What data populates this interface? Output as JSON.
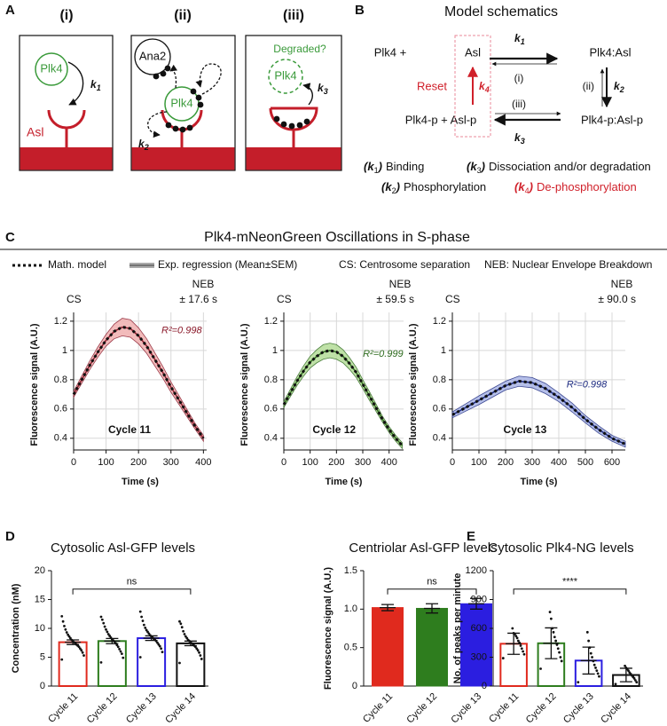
{
  "panel_a": {
    "label": "A",
    "steps": [
      "(i)",
      "(ii)",
      "(iii)"
    ],
    "k": "k",
    "rates": [
      "1",
      "2",
      "3"
    ],
    "plk4": "Plk4",
    "asl": "Asl",
    "ana2": "Ana2",
    "degraded": "Degraded?"
  },
  "panel_b": {
    "label": "B",
    "title": "Model schematics",
    "k": "k",
    "states": [
      "Plk4 +",
      "Asl",
      "Plk4:Asl",
      "Plk4-p + Asl-p",
      "Plk4-p:Asl-p"
    ],
    "steps": [
      "(i)",
      "(ii)",
      "(iii)"
    ],
    "rates": [
      "1",
      "2",
      "3",
      "4"
    ],
    "reset": "Reset",
    "legend": [
      {
        "open": "(",
        "rate": "1",
        "close": ")",
        "text": "Binding"
      },
      {
        "open": "(",
        "rate": "3",
        "close": ")",
        "text": "Dissociation and/or degradation"
      },
      {
        "open": "(",
        "rate": "2",
        "close": ")",
        "text": "Phosphorylation"
      },
      {
        "open": "(",
        "rate": "4",
        "close": ")",
        "text": "De-phosphorylation"
      }
    ]
  },
  "panel_c": {
    "label": "C",
    "title": "Plk4-mNeonGreen Oscillations in S-phase",
    "legend": [
      "Math. model",
      "Exp. regression (Mean±SEM)",
      "CS: Centrosome separation",
      "NEB: Nuclear Envelope Breakdown"
    ]
  },
  "panel_d": {
    "label": "D"
  },
  "panel_e": {
    "label": "E"
  },
  "chart_data": [
    {
      "type": "line",
      "label": "Cycle 11",
      "annotation": "R²=0.998",
      "markers": [
        "CS",
        "NEB",
        "± 17.6 s"
      ],
      "x_label": "Time (s)",
      "y_label": "Fluorescence signal (A.U.)",
      "x": [
        0,
        25,
        50,
        75,
        100,
        125,
        150,
        175,
        200,
        225,
        250,
        275,
        300,
        325,
        350,
        375,
        400
      ],
      "xlim": [
        0,
        410
      ],
      "xticks": [
        0,
        100,
        200,
        300,
        400
      ],
      "ylim": [
        0.32,
        1.26
      ],
      "yticks": [
        0.4,
        0.6,
        0.8,
        1,
        1.2
      ],
      "grid": true,
      "series": [
        {
          "color": "#8b1a2b",
          "band_color": "#f0b0b0",
          "values": [
            0.7,
            0.8,
            0.9,
            0.99,
            1.07,
            1.13,
            1.16,
            1.15,
            1.1,
            1.03,
            0.94,
            0.85,
            0.75,
            0.66,
            0.57,
            0.48,
            0.4
          ],
          "errors": [
            0.02,
            0.025,
            0.03,
            0.035,
            0.04,
            0.05,
            0.06,
            0.06,
            0.055,
            0.05,
            0.045,
            0.04,
            0.035,
            0.03,
            0.025,
            0.02,
            0.02
          ]
        },
        {
          "color": "#111111",
          "style": "dotted",
          "values": [
            0.7,
            0.8,
            0.9,
            0.99,
            1.07,
            1.13,
            1.16,
            1.15,
            1.1,
            1.03,
            0.94,
            0.85,
            0.75,
            0.66,
            0.57,
            0.48,
            0.4
          ]
        }
      ]
    },
    {
      "type": "line",
      "label": "Cycle 12",
      "annotation": "R²=0.999",
      "markers": [
        "CS",
        "NEB",
        "± 59.5 s"
      ],
      "x_label": "Time (s)",
      "y_label": "Fluorescence signal (A.U.)",
      "x": [
        0,
        25,
        50,
        75,
        100,
        125,
        150,
        175,
        200,
        225,
        250,
        275,
        300,
        325,
        350,
        375,
        400,
        425,
        450
      ],
      "xlim": [
        0,
        455
      ],
      "xticks": [
        0,
        100,
        200,
        300,
        400
      ],
      "ylim": [
        0.32,
        1.26
      ],
      "yticks": [
        0.4,
        0.6,
        0.8,
        1,
        1.2
      ],
      "grid": true,
      "series": [
        {
          "color": "#2e6b1e",
          "band_color": "#b5dc98",
          "values": [
            0.63,
            0.71,
            0.79,
            0.86,
            0.92,
            0.96,
            0.99,
            1.0,
            0.99,
            0.96,
            0.91,
            0.85,
            0.77,
            0.69,
            0.61,
            0.53,
            0.46,
            0.4,
            0.35
          ],
          "errors": [
            0.02,
            0.025,
            0.03,
            0.035,
            0.04,
            0.045,
            0.05,
            0.05,
            0.05,
            0.045,
            0.04,
            0.035,
            0.03,
            0.03,
            0.025,
            0.02,
            0.02,
            0.02,
            0.02
          ]
        },
        {
          "color": "#111111",
          "style": "dotted",
          "values": [
            0.63,
            0.71,
            0.79,
            0.86,
            0.92,
            0.96,
            0.99,
            1.0,
            0.99,
            0.96,
            0.91,
            0.85,
            0.77,
            0.69,
            0.61,
            0.53,
            0.46,
            0.4,
            0.35
          ]
        }
      ]
    },
    {
      "type": "line",
      "label": "Cycle 13",
      "annotation": "R²=0.998",
      "markers": [
        "CS",
        "NEB",
        "± 90.0 s"
      ],
      "x_label": "Time (s)",
      "y_label": "Fluorescence signal (A.U.)",
      "x": [
        0,
        50,
        100,
        150,
        200,
        250,
        300,
        350,
        400,
        450,
        500,
        550,
        600,
        650
      ],
      "xlim": [
        0,
        650
      ],
      "xticks": [
        0,
        100,
        200,
        300,
        400,
        500,
        600
      ],
      "ylim": [
        0.32,
        1.26
      ],
      "yticks": [
        0.4,
        0.6,
        0.8,
        1,
        1.2
      ],
      "grid": true,
      "series": [
        {
          "color": "#1c2a80",
          "band_color": "#a9b4e6",
          "values": [
            0.56,
            0.61,
            0.66,
            0.71,
            0.76,
            0.79,
            0.78,
            0.74,
            0.68,
            0.61,
            0.53,
            0.46,
            0.4,
            0.36
          ],
          "errors": [
            0.02,
            0.025,
            0.03,
            0.03,
            0.03,
            0.035,
            0.035,
            0.035,
            0.03,
            0.03,
            0.025,
            0.025,
            0.02,
            0.02
          ]
        },
        {
          "color": "#111111",
          "style": "dotted",
          "values": [
            0.56,
            0.61,
            0.66,
            0.71,
            0.76,
            0.79,
            0.78,
            0.74,
            0.68,
            0.61,
            0.53,
            0.46,
            0.4,
            0.36
          ]
        }
      ]
    },
    {
      "type": "bar",
      "title": "Cytosolic Asl-GFP levels",
      "y_label": "Concentration (nM)",
      "categories": [
        "Cycle 11",
        "Cycle 12",
        "Cycle 13",
        "Cycle 14"
      ],
      "values": [
        7.6,
        7.8,
        8.3,
        7.4
      ],
      "errors": [
        0.4,
        0.45,
        0.4,
        0.4
      ],
      "colors": [
        "#e02a1e",
        "#2e7d1e",
        "#2b1ee0",
        "#111111"
      ],
      "filled": false,
      "points": [
        [
          4.6,
          5.3,
          5.8,
          6.2,
          6.5,
          6.8,
          7.0,
          7.2,
          7.4,
          7.6,
          7.8,
          8.0,
          8.3,
          8.6,
          8.9,
          9.3,
          9.8,
          10.4,
          11.2,
          12.1
        ],
        [
          4.1,
          4.9,
          5.6,
          6.0,
          6.4,
          6.8,
          7.1,
          7.4,
          7.7,
          7.9,
          8.1,
          8.4,
          8.7,
          9.0,
          9.4,
          9.8,
          10.3,
          10.9,
          11.5,
          12.0
        ],
        [
          5.0,
          5.9,
          6.5,
          6.9,
          7.2,
          7.5,
          7.8,
          8.0,
          8.2,
          8.4,
          8.6,
          8.8,
          9.1,
          9.4,
          9.7,
          10.1,
          10.6,
          11.3,
          12.0,
          12.9
        ],
        [
          4.0,
          4.7,
          5.3,
          5.8,
          6.2,
          6.5,
          6.8,
          7.0,
          7.2,
          7.4,
          7.6,
          7.8,
          8.0,
          8.3,
          8.6,
          9.0,
          9.5,
          10.2,
          10.8,
          11.2
        ]
      ],
      "significance": "ns",
      "ylim": [
        0,
        20
      ],
      "yticks": [
        0,
        5,
        10,
        15,
        20
      ]
    },
    {
      "type": "bar",
      "title": "Centriolar Asl-GFP levels",
      "y_label": "Fluorescence signal (A.U.)",
      "categories": [
        "Cycle 11",
        "Cycle 12",
        "Cycle 13"
      ],
      "values": [
        1.02,
        1.01,
        1.07
      ],
      "errors": [
        0.04,
        0.06,
        0.07
      ],
      "colors": [
        "#e02a1e",
        "#2e7d1e",
        "#2b1ee0"
      ],
      "filled": true,
      "significance": "ns",
      "ylim": [
        0,
        1.5
      ],
      "yticks": [
        0,
        0.5,
        {
          "value": 1,
          "label": "1.0"
        },
        1.5
      ]
    },
    {
      "type": "bar",
      "title": "Cytosolic Plk4-NG levels",
      "y_label": "No. of peaks per minute",
      "categories": [
        "Cycle 11",
        "Cycle 12",
        "Cycle 13",
        "Cycle 14"
      ],
      "values": [
        440,
        445,
        265,
        115
      ],
      "errors": [
        110,
        160,
        140,
        70
      ],
      "colors": [
        "#e02a1e",
        "#2e7d1e",
        "#2b1ee0",
        "#111111"
      ],
      "filled": false,
      "points": [
        [
          290,
          330,
          360,
          390,
          420,
          450,
          470,
          500,
          520,
          540,
          550,
          600
        ],
        [
          180,
          260,
          300,
          350,
          390,
          430,
          470,
          510,
          560,
          600,
          700,
          770
        ],
        [
          40,
          100,
          130,
          160,
          190,
          220,
          260,
          300,
          340,
          400,
          470,
          560
        ],
        [
          20,
          40,
          60,
          80,
          95,
          110,
          125,
          140,
          160,
          175,
          190,
          210
        ]
      ],
      "significance": "****",
      "ylim": [
        0,
        1200
      ],
      "yticks": [
        0,
        300,
        600,
        900,
        1200
      ]
    }
  ]
}
